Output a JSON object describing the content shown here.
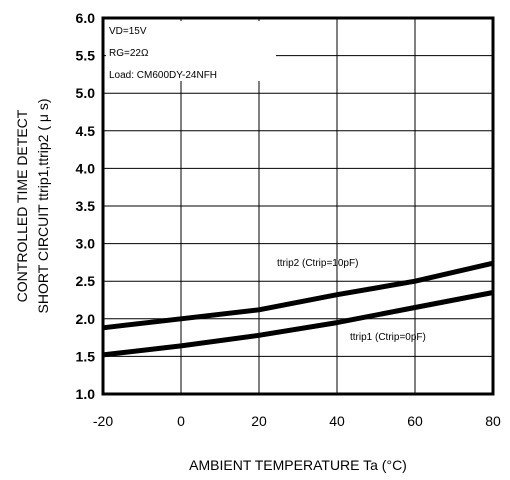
{
  "chart_data": {
    "type": "line",
    "xlabel": "AMBIENT TEMPERATURE  Ta (°C)",
    "ylabel_line1": "CONTROLLED TIME DETECT",
    "ylabel_line2": "SHORT CIRCUIT  ttrip1,ttrip2 ( μ s)",
    "xlim": [
      -20,
      80
    ],
    "ylim": [
      1.0,
      6.0
    ],
    "xticks": [
      "-20",
      "0",
      "20",
      "40",
      "60",
      "80"
    ],
    "yticks": [
      "1.0",
      "1.5",
      "2.0",
      "2.5",
      "3.0",
      "3.5",
      "4.0",
      "4.5",
      "5.0",
      "5.5",
      "6.0"
    ],
    "grid": true,
    "conditions": [
      "VD=15V",
      "RG=22Ω",
      "Load: CM600DY-24NFH"
    ],
    "series": [
      {
        "name": "ttrip2 (Ctrip=10pF)",
        "x": [
          -20,
          0,
          20,
          40,
          60,
          80
        ],
        "y": [
          1.88,
          2.0,
          2.12,
          2.32,
          2.5,
          2.74
        ]
      },
      {
        "name": "ttrip1 (Ctrip=0pF)",
        "x": [
          -20,
          0,
          20,
          40,
          60,
          80
        ],
        "y": [
          1.52,
          1.64,
          1.78,
          1.95,
          2.15,
          2.35
        ]
      }
    ]
  }
}
